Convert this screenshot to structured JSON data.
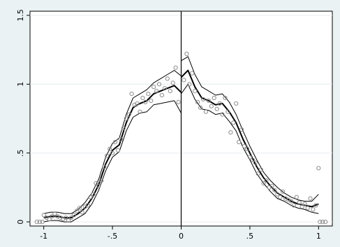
{
  "chart_data": {
    "type": "scatter",
    "title": "",
    "xlabel": "",
    "ylabel": "",
    "xlim": [
      -1.1,
      1.1
    ],
    "ylim": [
      -0.03,
      1.53
    ],
    "x_ticks": [
      {
        "value": -1,
        "label": "-1"
      },
      {
        "value": -0.5,
        "label": "-.5"
      },
      {
        "value": 0,
        "label": "0"
      },
      {
        "value": 0.5,
        "label": ".5"
      },
      {
        "value": 1,
        "label": "1"
      }
    ],
    "y_ticks": [
      {
        "value": 0,
        "label": "0"
      },
      {
        "value": 0.5,
        "label": ".5"
      },
      {
        "value": 1,
        "label": "1"
      },
      {
        "value": 1.5,
        "label": "1.5"
      }
    ],
    "grid": "horizontal",
    "vertical_line_at": 0,
    "colors": {
      "background": "#eaf2f3",
      "plot_area": "#ffffff",
      "points": "#8c8c8c",
      "lines": "#000000",
      "grid": "#e6ecee"
    },
    "points": [
      [
        -1.05,
        0
      ],
      [
        -1.03,
        0
      ],
      [
        -1.01,
        0
      ],
      [
        -1.0,
        0.05
      ],
      [
        -0.98,
        0.03
      ],
      [
        -0.96,
        0.02
      ],
      [
        -0.94,
        0.04
      ],
      [
        -0.92,
        0.06
      ],
      [
        -0.9,
        0.04
      ],
      [
        -0.88,
        0.03
      ],
      [
        -0.86,
        0.02
      ],
      [
        -0.84,
        0.03
      ],
      [
        -0.82,
        0.01
      ],
      [
        -0.8,
        0.03
      ],
      [
        -0.78,
        0.05
      ],
      [
        -0.76,
        0.08
      ],
      [
        -0.74,
        0.1
      ],
      [
        -0.72,
        0.07
      ],
      [
        -0.7,
        0.11
      ],
      [
        -0.68,
        0.12
      ],
      [
        -0.66,
        0.18
      ],
      [
        -0.64,
        0.2
      ],
      [
        -0.62,
        0.28
      ],
      [
        -0.6,
        0.26
      ],
      [
        -0.58,
        0.3
      ],
      [
        -0.56,
        0.4
      ],
      [
        -0.54,
        0.48
      ],
      [
        -0.52,
        0.53
      ],
      [
        -0.5,
        0.5
      ],
      [
        -0.48,
        0.58
      ],
      [
        -0.46,
        0.52
      ],
      [
        -0.44,
        0.6
      ],
      [
        -0.42,
        0.68
      ],
      [
        -0.4,
        0.75
      ],
      [
        -0.38,
        0.78
      ],
      [
        -0.36,
        0.93
      ],
      [
        -0.34,
        0.85
      ],
      [
        -0.32,
        0.86
      ],
      [
        -0.3,
        0.8
      ],
      [
        -0.28,
        0.9
      ],
      [
        -0.26,
        0.87
      ],
      [
        -0.24,
        0.93
      ],
      [
        -0.22,
        0.88
      ],
      [
        -0.2,
        0.98
      ],
      [
        -0.18,
        0.95
      ],
      [
        -0.16,
        1.0
      ],
      [
        -0.14,
        0.92
      ],
      [
        -0.12,
        0.97
      ],
      [
        -0.1,
        1.04
      ],
      [
        -0.08,
        0.95
      ],
      [
        -0.06,
        1.01
      ],
      [
        -0.04,
        1.12
      ],
      [
        -0.02,
        0.87
      ],
      [
        0.02,
        1.03
      ],
      [
        0.04,
        1.22
      ],
      [
        0.06,
        1.0
      ],
      [
        0.08,
        1.08
      ],
      [
        0.1,
        0.95
      ],
      [
        0.12,
        0.87
      ],
      [
        0.14,
        0.83
      ],
      [
        0.16,
        0.89
      ],
      [
        0.18,
        0.8
      ],
      [
        0.2,
        0.88
      ],
      [
        0.22,
        0.84
      ],
      [
        0.24,
        0.9
      ],
      [
        0.26,
        0.82
      ],
      [
        0.28,
        0.86
      ],
      [
        0.3,
        0.78
      ],
      [
        0.32,
        0.9
      ],
      [
        0.34,
        0.8
      ],
      [
        0.36,
        0.65
      ],
      [
        0.38,
        0.72
      ],
      [
        0.4,
        0.86
      ],
      [
        0.42,
        0.58
      ],
      [
        0.44,
        0.67
      ],
      [
        0.46,
        0.55
      ],
      [
        0.48,
        0.53
      ],
      [
        0.5,
        0.47
      ],
      [
        0.52,
        0.45
      ],
      [
        0.54,
        0.43
      ],
      [
        0.56,
        0.35
      ],
      [
        0.58,
        0.38
      ],
      [
        0.6,
        0.28
      ],
      [
        0.62,
        0.3
      ],
      [
        0.64,
        0.25
      ],
      [
        0.66,
        0.26
      ],
      [
        0.68,
        0.23
      ],
      [
        0.7,
        0.2
      ],
      [
        0.72,
        0.18
      ],
      [
        0.74,
        0.22
      ],
      [
        0.76,
        0.17
      ],
      [
        0.78,
        0.16
      ],
      [
        0.8,
        0.15
      ],
      [
        0.82,
        0.12
      ],
      [
        0.84,
        0.18
      ],
      [
        0.86,
        0.14
      ],
      [
        0.88,
        0.11
      ],
      [
        0.9,
        0.13
      ],
      [
        0.92,
        0.1
      ],
      [
        0.94,
        0.17
      ],
      [
        0.96,
        0.09
      ],
      [
        0.98,
        0.12
      ],
      [
        1.0,
        0.39
      ],
      [
        1.01,
        0
      ],
      [
        1.03,
        0
      ],
      [
        1.05,
        0
      ]
    ],
    "fit_left": [
      [
        -1.0,
        0.03
      ],
      [
        -0.95,
        0.04
      ],
      [
        -0.9,
        0.04
      ],
      [
        -0.85,
        0.03
      ],
      [
        -0.8,
        0.03
      ],
      [
        -0.75,
        0.06
      ],
      [
        -0.7,
        0.1
      ],
      [
        -0.65,
        0.17
      ],
      [
        -0.6,
        0.27
      ],
      [
        -0.55,
        0.42
      ],
      [
        -0.5,
        0.52
      ],
      [
        -0.45,
        0.56
      ],
      [
        -0.4,
        0.72
      ],
      [
        -0.35,
        0.83
      ],
      [
        -0.3,
        0.86
      ],
      [
        -0.25,
        0.88
      ],
      [
        -0.2,
        0.93
      ],
      [
        -0.15,
        0.95
      ],
      [
        -0.1,
        0.97
      ],
      [
        -0.05,
        0.99
      ],
      [
        0.0,
        0.94
      ]
    ],
    "upper_left": [
      [
        -1.0,
        0.06
      ],
      [
        -0.95,
        0.07
      ],
      [
        -0.9,
        0.07
      ],
      [
        -0.85,
        0.06
      ],
      [
        -0.8,
        0.06
      ],
      [
        -0.75,
        0.09
      ],
      [
        -0.7,
        0.14
      ],
      [
        -0.65,
        0.21
      ],
      [
        -0.6,
        0.31
      ],
      [
        -0.55,
        0.47
      ],
      [
        -0.5,
        0.57
      ],
      [
        -0.45,
        0.61
      ],
      [
        -0.4,
        0.78
      ],
      [
        -0.35,
        0.9
      ],
      [
        -0.3,
        0.93
      ],
      [
        -0.25,
        0.96
      ],
      [
        -0.2,
        1.01
      ],
      [
        -0.15,
        1.04
      ],
      [
        -0.1,
        1.07
      ],
      [
        -0.05,
        1.1
      ],
      [
        0.0,
        1.06
      ]
    ],
    "lower_left": [
      [
        -1.0,
        0.0
      ],
      [
        -0.95,
        0.01
      ],
      [
        -0.9,
        0.01
      ],
      [
        -0.85,
        0.0
      ],
      [
        -0.8,
        0.0
      ],
      [
        -0.75,
        0.03
      ],
      [
        -0.7,
        0.06
      ],
      [
        -0.65,
        0.13
      ],
      [
        -0.6,
        0.23
      ],
      [
        -0.55,
        0.37
      ],
      [
        -0.5,
        0.47
      ],
      [
        -0.45,
        0.51
      ],
      [
        -0.4,
        0.66
      ],
      [
        -0.35,
        0.76
      ],
      [
        -0.3,
        0.79
      ],
      [
        -0.25,
        0.8
      ],
      [
        -0.2,
        0.85
      ],
      [
        -0.15,
        0.86
      ],
      [
        -0.1,
        0.87
      ],
      [
        -0.05,
        0.88
      ],
      [
        0.0,
        0.79
      ]
    ],
    "fit_right": [
      [
        0.0,
        1.05
      ],
      [
        0.05,
        1.1
      ],
      [
        0.1,
        0.98
      ],
      [
        0.15,
        0.9
      ],
      [
        0.2,
        0.88
      ],
      [
        0.25,
        0.85
      ],
      [
        0.3,
        0.86
      ],
      [
        0.35,
        0.8
      ],
      [
        0.4,
        0.72
      ],
      [
        0.45,
        0.6
      ],
      [
        0.5,
        0.5
      ],
      [
        0.55,
        0.4
      ],
      [
        0.6,
        0.32
      ],
      [
        0.65,
        0.26
      ],
      [
        0.7,
        0.21
      ],
      [
        0.75,
        0.18
      ],
      [
        0.8,
        0.15
      ],
      [
        0.85,
        0.13
      ],
      [
        0.9,
        0.12
      ],
      [
        0.95,
        0.11
      ],
      [
        1.0,
        0.13
      ]
    ],
    "upper_right": [
      [
        0.0,
        1.17
      ],
      [
        0.05,
        1.2
      ],
      [
        0.1,
        1.07
      ],
      [
        0.15,
        0.98
      ],
      [
        0.2,
        0.95
      ],
      [
        0.25,
        0.92
      ],
      [
        0.3,
        0.93
      ],
      [
        0.35,
        0.87
      ],
      [
        0.4,
        0.78
      ],
      [
        0.45,
        0.66
      ],
      [
        0.5,
        0.55
      ],
      [
        0.55,
        0.45
      ],
      [
        0.6,
        0.36
      ],
      [
        0.65,
        0.3
      ],
      [
        0.7,
        0.25
      ],
      [
        0.75,
        0.21
      ],
      [
        0.8,
        0.18
      ],
      [
        0.85,
        0.16
      ],
      [
        0.9,
        0.15
      ],
      [
        0.95,
        0.15
      ],
      [
        1.0,
        0.2
      ]
    ],
    "lower_right": [
      [
        0.0,
        0.93
      ],
      [
        0.05,
        1.0
      ],
      [
        0.1,
        0.89
      ],
      [
        0.15,
        0.82
      ],
      [
        0.2,
        0.81
      ],
      [
        0.25,
        0.78
      ],
      [
        0.3,
        0.79
      ],
      [
        0.35,
        0.73
      ],
      [
        0.4,
        0.66
      ],
      [
        0.45,
        0.54
      ],
      [
        0.5,
        0.45
      ],
      [
        0.55,
        0.35
      ],
      [
        0.6,
        0.28
      ],
      [
        0.65,
        0.22
      ],
      [
        0.7,
        0.17
      ],
      [
        0.75,
        0.15
      ],
      [
        0.8,
        0.12
      ],
      [
        0.85,
        0.1
      ],
      [
        0.9,
        0.09
      ],
      [
        0.95,
        0.07
      ],
      [
        1.0,
        0.06
      ]
    ]
  }
}
